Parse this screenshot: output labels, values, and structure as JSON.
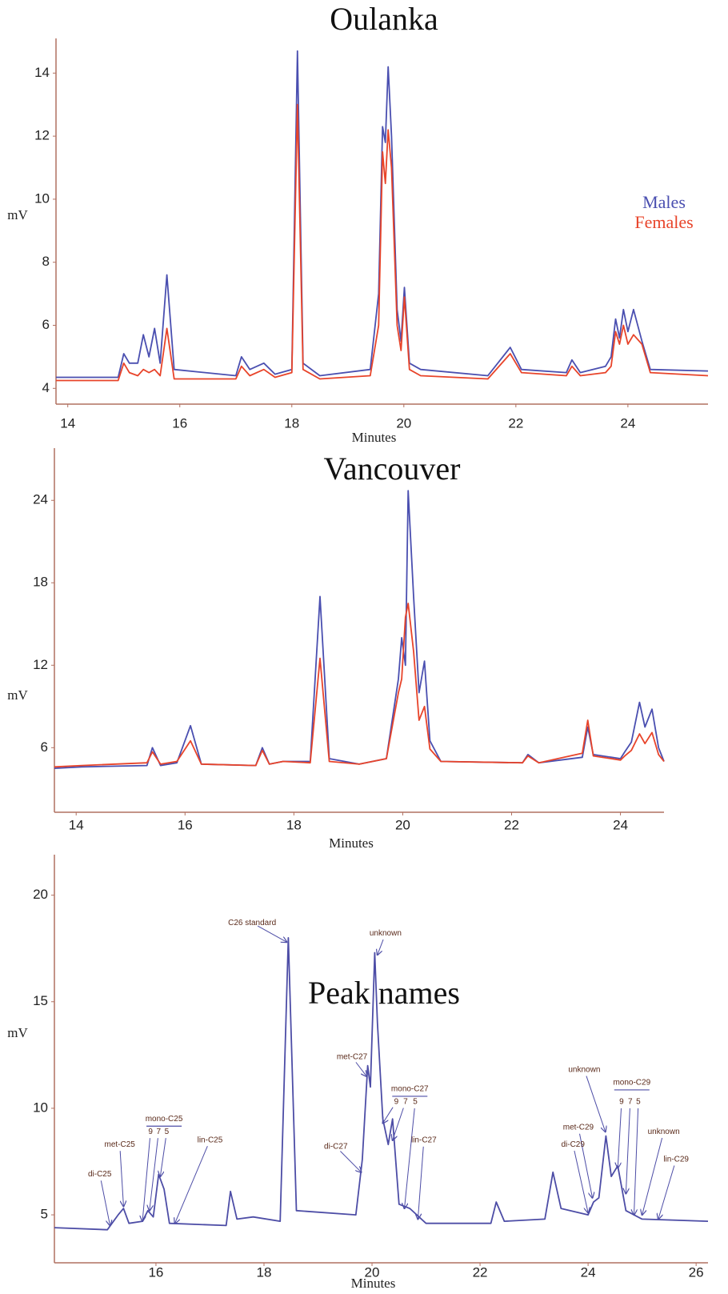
{
  "chart_data": [
    {
      "type": "line",
      "title": "Oulanka",
      "x_label": "Minutes",
      "y_label": "mV",
      "xlim": [
        13.79,
        25.43
      ],
      "ylim": [
        3.5,
        15.1
      ],
      "xticks": [
        14,
        16,
        18,
        20,
        22,
        24
      ],
      "yticks": [
        4,
        6,
        8,
        10,
        12,
        14
      ],
      "legend": "right",
      "x": [
        13.79,
        14.9,
        15.0,
        15.1,
        15.25,
        15.35,
        15.45,
        15.55,
        15.65,
        15.77,
        15.9,
        17.0,
        17.1,
        17.25,
        17.5,
        17.7,
        18.0,
        18.1,
        18.2,
        18.5,
        19.4,
        19.55,
        19.62,
        19.67,
        19.72,
        19.78,
        19.88,
        19.95,
        20.01,
        20.1,
        20.3,
        21.5,
        21.9,
        22.1,
        22.9,
        23.0,
        23.15,
        23.6,
        23.7,
        23.78,
        23.85,
        23.92,
        24.0,
        24.1,
        24.25,
        24.4,
        25.43
      ],
      "series": [
        {
          "name": "Males",
          "color": "#4a4fb0",
          "values": [
            4.35,
            4.35,
            5.1,
            4.8,
            4.8,
            5.7,
            5.0,
            5.9,
            4.8,
            7.6,
            4.6,
            4.4,
            5.0,
            4.6,
            4.8,
            4.45,
            4.6,
            14.7,
            4.8,
            4.4,
            4.6,
            7,
            12.3,
            11.8,
            14.2,
            12,
            6.5,
            5.5,
            7.2,
            4.8,
            4.6,
            4.4,
            5.3,
            4.6,
            4.5,
            4.9,
            4.5,
            4.7,
            5.0,
            6.2,
            5.6,
            6.5,
            5.8,
            6.5,
            5.5,
            4.6,
            4.55
          ]
        },
        {
          "name": "Females",
          "color": "#e8442a",
          "values": [
            4.25,
            4.25,
            4.8,
            4.5,
            4.4,
            4.6,
            4.5,
            4.6,
            4.4,
            5.9,
            4.3,
            4.3,
            4.7,
            4.4,
            4.6,
            4.35,
            4.5,
            13.0,
            4.6,
            4.3,
            4.4,
            6,
            11.5,
            10.5,
            12.2,
            11,
            6,
            5.2,
            6.9,
            4.6,
            4.4,
            4.3,
            5.1,
            4.5,
            4.4,
            4.7,
            4.4,
            4.5,
            4.7,
            5.8,
            5.4,
            6.0,
            5.4,
            5.7,
            5.4,
            4.5,
            4.4
          ]
        }
      ]
    },
    {
      "type": "line",
      "title": "Vancouver",
      "x_label": "Minutes",
      "y_label": "mV",
      "xlim": [
        13.6,
        24.8
      ],
      "ylim": [
        1.3,
        27.8
      ],
      "xticks": [
        14,
        16,
        18,
        20,
        22,
        24
      ],
      "yticks": [
        6,
        12,
        18,
        24
      ],
      "x": [
        13.6,
        14.1,
        15.3,
        15.4,
        15.55,
        15.85,
        16.1,
        16.3,
        17.3,
        17.42,
        17.55,
        17.8,
        18.3,
        18.48,
        18.65,
        19.2,
        19.7,
        19.92,
        19.98,
        20.05,
        20.1,
        20.2,
        20.3,
        20.4,
        20.5,
        20.7,
        22.2,
        22.3,
        22.5,
        23.3,
        23.4,
        23.5,
        24.0,
        24.08,
        24.2,
        24.35,
        24.45,
        24.58,
        24.7,
        24.8
      ],
      "series": [
        {
          "name": "Males",
          "color": "#4a4fb0",
          "values": [
            4.5,
            4.6,
            4.7,
            6.0,
            4.7,
            4.9,
            7.6,
            4.8,
            4.7,
            6,
            4.8,
            5.0,
            5,
            17,
            5.2,
            4.8,
            5.2,
            11,
            14,
            12,
            24.7,
            17,
            10,
            12.3,
            6.5,
            5,
            4.9,
            5.5,
            4.9,
            5.3,
            7.5,
            5.5,
            5.2,
            5.7,
            6.4,
            9.3,
            7.5,
            8.8,
            6,
            5.0
          ]
        },
        {
          "name": "Females",
          "color": "#e8442a",
          "values": [
            4.6,
            4.7,
            4.9,
            5.7,
            4.8,
            5.0,
            6.5,
            4.8,
            4.7,
            5.8,
            4.8,
            5.0,
            4.9,
            12.5,
            5,
            4.8,
            5.2,
            10,
            11,
            15.5,
            16.5,
            13,
            8,
            9,
            5.9,
            5,
            4.9,
            5.4,
            4.9,
            5.6,
            8,
            5.4,
            5.1,
            5.4,
            5.8,
            7,
            6.3,
            7.1,
            5.5,
            5.0
          ]
        }
      ]
    },
    {
      "type": "line",
      "title": "Peak names",
      "x_label": "Minutes",
      "y_label": "mV",
      "xlim": [
        14.12,
        26.22
      ],
      "ylim": [
        2.75,
        21.9
      ],
      "xticks": [
        16,
        18,
        20,
        22,
        24,
        26
      ],
      "yticks": [
        5,
        10,
        15,
        20
      ],
      "x": [
        14.12,
        15.1,
        15.3,
        15.4,
        15.5,
        15.75,
        15.85,
        15.95,
        16.05,
        16.15,
        16.25,
        17.3,
        17.38,
        17.5,
        17.8,
        18.3,
        18.45,
        18.6,
        19.7,
        19.82,
        19.92,
        19.97,
        20.05,
        20.1,
        20.2,
        20.3,
        20.38,
        20.5,
        20.7,
        21.0,
        22.2,
        22.3,
        22.45,
        23.2,
        23.35,
        23.5,
        24.0,
        24.1,
        24.2,
        24.33,
        24.43,
        24.55,
        24.7,
        25.0,
        26.22
      ],
      "series": [
        {
          "color": "#4d4da6",
          "values": [
            4.4,
            4.3,
            5.0,
            5.3,
            4.6,
            4.7,
            5.2,
            4.9,
            6.9,
            6.2,
            4.6,
            4.5,
            6.1,
            4.8,
            4.9,
            4.7,
            18,
            5.2,
            5.0,
            7.6,
            12,
            11,
            17.3,
            14,
            9.5,
            8.3,
            9.5,
            5.5,
            5.3,
            4.6,
            4.6,
            5.6,
            4.7,
            4.8,
            7,
            5.3,
            5.0,
            5.6,
            5.8,
            8.7,
            6.8,
            7.3,
            5.2,
            4.8,
            4.7
          ]
        }
      ],
      "annotations": [
        {
          "text": "C26 standard",
          "x": 17.78,
          "y": 18.7,
          "to": [
            18.42,
            17.8
          ]
        },
        {
          "text": "unknown",
          "x": 20.25,
          "y": 18.2,
          "to": [
            20.1,
            17.2
          ]
        },
        {
          "text": "met-C27",
          "x": 19.63,
          "y": 12.4,
          "to": [
            19.9,
            11.5
          ]
        },
        {
          "text": "mono-C27",
          "x": 20.7,
          "y": 10.9,
          "underline": true
        },
        {
          "text": "9",
          "x": 20.45,
          "y": 10.3,
          "to": [
            20.2,
            9.3
          ]
        },
        {
          "text": "7",
          "x": 20.62,
          "y": 10.3,
          "to": [
            20.38,
            8.5
          ]
        },
        {
          "text": "5",
          "x": 20.8,
          "y": 10.3,
          "to": [
            20.6,
            5.3
          ]
        },
        {
          "text": "di-C27",
          "x": 19.33,
          "y": 8.2,
          "to": [
            19.8,
            7
          ]
        },
        {
          "text": "lin-C27",
          "x": 20.96,
          "y": 8.5,
          "to": [
            20.85,
            4.8
          ]
        },
        {
          "text": "unknown",
          "x": 23.93,
          "y": 11.8,
          "to": [
            24.32,
            8.9
          ]
        },
        {
          "text": "mono-C29",
          "x": 24.81,
          "y": 11.2,
          "underline": true
        },
        {
          "text": "9",
          "x": 24.62,
          "y": 10.3,
          "to": [
            24.55,
            7.2
          ]
        },
        {
          "text": "7",
          "x": 24.78,
          "y": 10.3,
          "to": [
            24.7,
            6
          ]
        },
        {
          "text": "5",
          "x": 24.93,
          "y": 10.3,
          "to": [
            24.85,
            5.0
          ]
        },
        {
          "text": "met-C29",
          "x": 23.82,
          "y": 9.1,
          "to": [
            24.08,
            5.8
          ]
        },
        {
          "text": "di-C29",
          "x": 23.72,
          "y": 8.3,
          "to": [
            24.0,
            5.1
          ]
        },
        {
          "text": "unknown",
          "x": 25.4,
          "y": 8.9,
          "to": [
            25.0,
            5.0
          ]
        },
        {
          "text": "lin-C29",
          "x": 25.63,
          "y": 7.6,
          "to": [
            25.3,
            4.8
          ]
        },
        {
          "text": "di-C25",
          "x": 14.96,
          "y": 6.9,
          "to": [
            15.15,
            4.5
          ]
        },
        {
          "text": "met-C25",
          "x": 15.33,
          "y": 8.3,
          "to": [
            15.4,
            5.4
          ]
        },
        {
          "text": "mono-C25",
          "x": 16.15,
          "y": 9.5,
          "underline": true
        },
        {
          "text": "9",
          "x": 15.9,
          "y": 8.9,
          "to": [
            15.75,
            4.7
          ]
        },
        {
          "text": "7",
          "x": 16.05,
          "y": 8.9,
          "to": [
            15.88,
            5.2
          ]
        },
        {
          "text": "5",
          "x": 16.2,
          "y": 8.9,
          "to": [
            16.08,
            6.8
          ]
        },
        {
          "text": "lin-C25",
          "x": 17.0,
          "y": 8.5,
          "to": [
            16.35,
            4.6
          ]
        }
      ]
    }
  ]
}
